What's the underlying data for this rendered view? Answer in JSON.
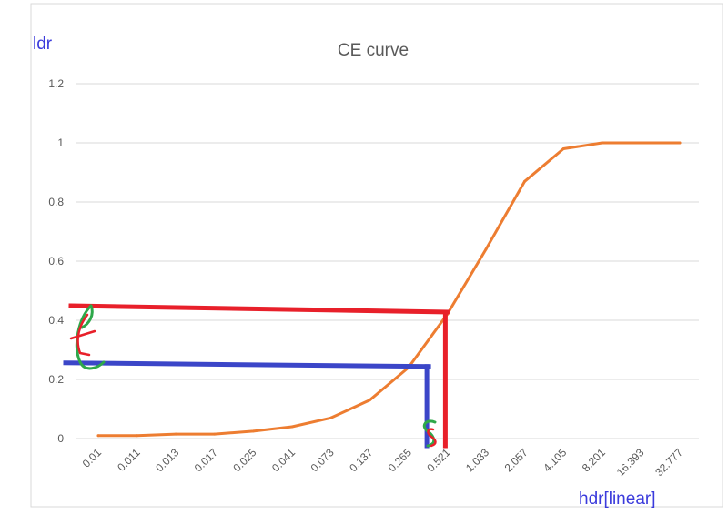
{
  "chart_data": {
    "type": "line",
    "title": "CE curve",
    "xlabel": "",
    "ylabel": "",
    "categories": [
      "0.01",
      "0.011",
      "0.013",
      "0.017",
      "0.025",
      "0.041",
      "0.073",
      "0.137",
      "0.265",
      "0.521",
      "1.033",
      "2.057",
      "4.105",
      "8.201",
      "16.393",
      "32.777"
    ],
    "series": [
      {
        "values": [
          0.01,
          0.01,
          0.015,
          0.015,
          0.025,
          0.04,
          0.07,
          0.13,
          0.24,
          0.42,
          0.64,
          0.87,
          0.98,
          1.0,
          1.0,
          1.0
        ]
      }
    ],
    "ylim": [
      0,
      1.2
    ],
    "yticks": [
      "0",
      "0.2",
      "0.4",
      "0.6",
      "0.8",
      "1",
      "1.2"
    ],
    "grid": true,
    "legend": "none",
    "line_color": "#ed7d31"
  },
  "annotations": {
    "y_axis_label": "ldr",
    "x_axis_label": "hdr[linear]",
    "y_axis_label_color": "#3b3bdc",
    "x_axis_label_color": "#3b3bdc",
    "red_guide": {
      "y_value": 0.44,
      "x_category": "0.521",
      "color": "#e8202a"
    },
    "blue_guide": {
      "y_value": 0.25,
      "x_position_between": [
        "0.265",
        "0.521"
      ],
      "color": "#3b46c8"
    },
    "handwritten_l": {
      "text": "ℓ",
      "color": "#2ea84a"
    },
    "handwritten_s": {
      "text": "S",
      "color": "#2ea84a"
    }
  }
}
